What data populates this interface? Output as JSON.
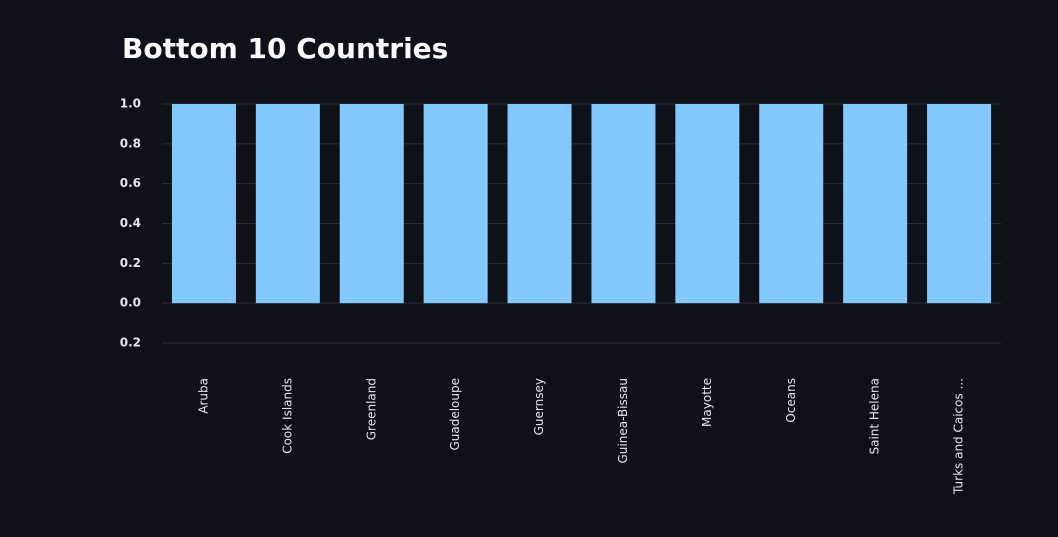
{
  "chart_data": {
    "type": "bar",
    "title": "Bottom 10 Countries",
    "categories": [
      "Aruba",
      "Cook Islands",
      "Greenland",
      "Guadeloupe",
      "Guernsey",
      "Guinea-Bissau",
      "Mayotte",
      "Oceans",
      "Saint Helena",
      "Turks and Caicos ..."
    ],
    "values": [
      1,
      1,
      1,
      1,
      1,
      1,
      1,
      1,
      1,
      1
    ],
    "color": "#83c9ff",
    "ylim": [
      -0.2,
      1.0
    ],
    "yticks": [
      {
        "value": 1.0,
        "label": "1.0"
      },
      0.8,
      0.6,
      0.4,
      0.2,
      {
        "value": 0,
        "label": "0.0"
      },
      {
        "value": -0.2,
        "label": "0.2"
      }
    ],
    "grid": true
  }
}
